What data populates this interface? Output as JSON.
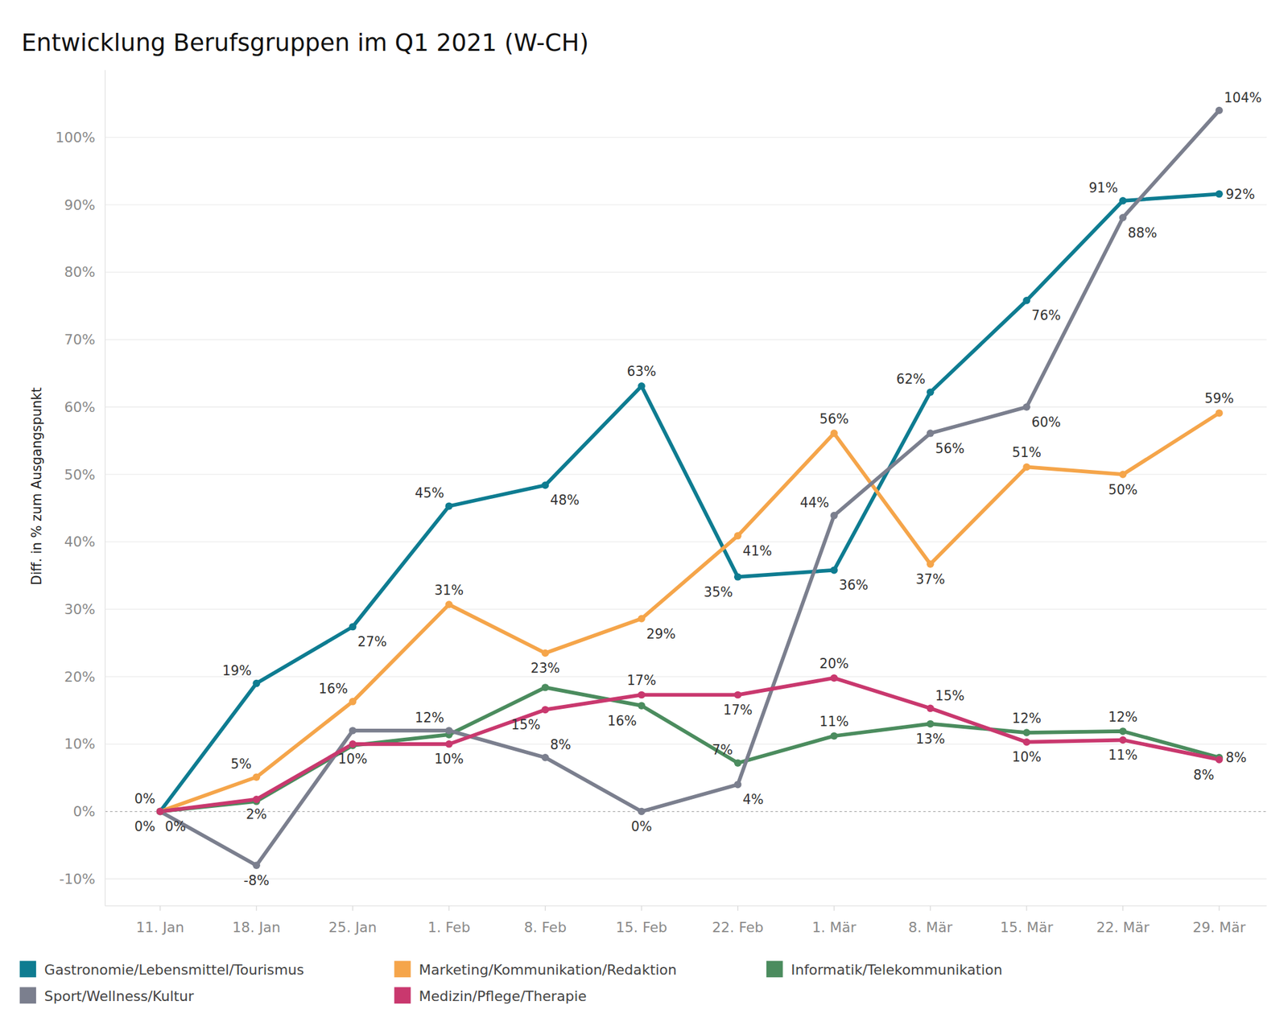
{
  "chart_data": {
    "type": "line",
    "title": "Entwicklung Berufsgruppen im Q1 2021 (W-CH)",
    "y_label": "Diff. in % zum Ausgangspunkt",
    "categories": [
      "11. Jan",
      "18. Jan",
      "25. Jan",
      "1. Feb",
      "8. Feb",
      "15. Feb",
      "22. Feb",
      "1. Mär",
      "8. Mär",
      "15. Mär",
      "22. Mär",
      "29. Mär"
    ],
    "series": [
      {
        "name": "Gastronomie/Lebensmittel/Tourismus",
        "color": "#0e7c91",
        "values": [
          0,
          19.0,
          27.4,
          45.3,
          48.4,
          63.1,
          34.8,
          35.8,
          62.2,
          75.8,
          90.6,
          91.6
        ],
        "value_labels": [
          "0%",
          "19%",
          "27%",
          "45%",
          "48%",
          "63%",
          "35%",
          "36%",
          "62%",
          "76%",
          "91%",
          "92%"
        ]
      },
      {
        "name": "Marketing/Kommunikation/Redaktion",
        "color": "#f5a54a",
        "values": [
          0,
          5.1,
          16.3,
          30.7,
          23.5,
          28.6,
          40.9,
          56.1,
          36.7,
          51.1,
          50.0,
          59.1
        ],
        "value_labels": [
          null,
          "5%",
          "16%",
          "31%",
          "23%",
          "29%",
          "41%",
          "56%",
          "37%",
          "51%",
          "50%",
          "59%"
        ]
      },
      {
        "name": "Informatik/Telekommunikation",
        "color": "#4b8c5e",
        "values": [
          0,
          1.5,
          9.8,
          11.4,
          18.4,
          15.7,
          7.2,
          11.2,
          13.0,
          11.7,
          11.9,
          8.0
        ],
        "value_labels": [
          null,
          null,
          null,
          null,
          null,
          "16%",
          "7%",
          "11%",
          "13%",
          "12%",
          "12%",
          "8%"
        ]
      },
      {
        "name": "Sport/Wellness/Kultur",
        "color": "#7b7f8e",
        "values": [
          0,
          -8.0,
          12.0,
          12.0,
          8.0,
          0,
          4.0,
          43.9,
          56.1,
          60.0,
          88.1,
          104.0
        ],
        "value_labels": [
          "0%",
          "-8%",
          null,
          "12%",
          "8%",
          "0%",
          "4%",
          "44%",
          "56%",
          "60%",
          "88%",
          "104%"
        ]
      },
      {
        "name": "Medizin/Pflege/Therapie",
        "color": "#c9386e",
        "values": [
          0,
          1.8,
          10.0,
          10.0,
          15.1,
          17.3,
          17.3,
          19.8,
          15.3,
          10.3,
          10.6,
          7.7
        ],
        "value_labels": [
          "0%",
          "2%",
          "10%",
          "10%",
          "15%",
          "17%",
          "17%",
          "20%",
          "15%",
          "10%",
          "11%",
          "8%"
        ]
      }
    ],
    "ylim": [
      -14,
      110
    ],
    "yticks": [
      {
        "value": -10,
        "label": "-10%"
      },
      {
        "value": 0,
        "label": "0%"
      },
      {
        "value": 10,
        "label": "10%"
      },
      {
        "value": 20,
        "label": "20%"
      },
      {
        "value": 30,
        "label": "30%"
      },
      {
        "value": 40,
        "label": "40%"
      },
      {
        "value": 50,
        "label": "50%"
      },
      {
        "value": 60,
        "label": "60%"
      },
      {
        "value": 70,
        "label": "70%"
      },
      {
        "value": 80,
        "label": "80%"
      },
      {
        "value": 90,
        "label": "90%"
      },
      {
        "value": 100,
        "label": "100%"
      }
    ],
    "grid": true,
    "data_labels": true,
    "legend": "bottom",
    "marker": "circle"
  }
}
